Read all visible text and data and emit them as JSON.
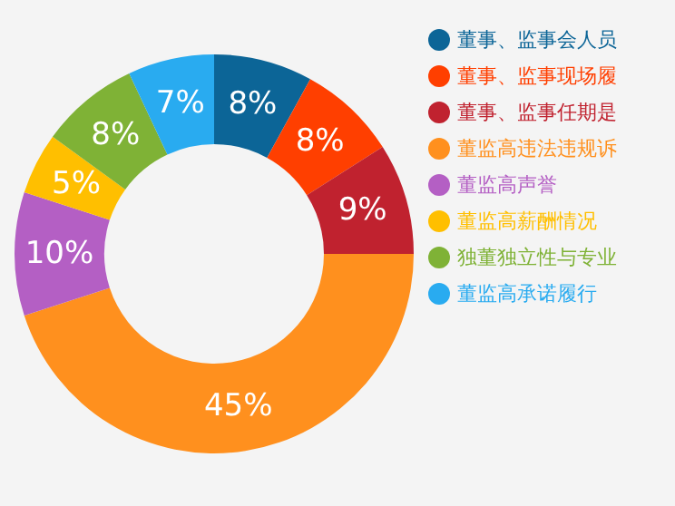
{
  "chart_data": {
    "type": "donut",
    "categories": [
      "董事、监事会人员",
      "董事、监事现场履",
      "董事、监事任期是",
      "董监高违法违规诉",
      "董监高声誉",
      "董监高薪酬情况",
      "独董独立性与专业",
      "董监高承诺履行"
    ],
    "values": [
      8,
      8,
      9,
      45,
      10,
      5,
      8,
      7
    ],
    "value_labels": [
      "8%",
      "8%",
      "9%",
      "45%",
      "10%",
      "5%",
      "8%",
      "7%"
    ],
    "colors": [
      "#0c6597",
      "#ff3f00",
      "#c0222f",
      "#ff901e",
      "#b45fc4",
      "#ffbf00",
      "#7fb236",
      "#29abf0"
    ],
    "legend": "right"
  }
}
